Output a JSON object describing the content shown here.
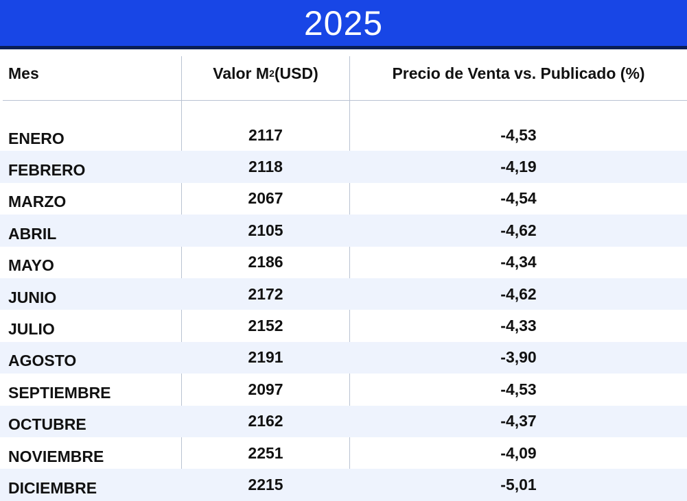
{
  "title": "2025",
  "headers": {
    "mes": "Mes",
    "valor_prefix": "Valor M",
    "valor_sup": "2",
    "valor_suffix": "(USD)",
    "precio": "Precio de Venta vs. Publicado (%)"
  },
  "rows": [
    {
      "mes": "ENERO",
      "valor": "2117",
      "precio": "-4,53"
    },
    {
      "mes": "FEBRERO",
      "valor": "2118",
      "precio": "-4,19"
    },
    {
      "mes": "MARZO",
      "valor": "2067",
      "precio": "-4,54"
    },
    {
      "mes": "ABRIL",
      "valor": "2105",
      "precio": "-4,62"
    },
    {
      "mes": "MAYO",
      "valor": "2186",
      "precio": "-4,34"
    },
    {
      "mes": "JUNIO",
      "valor": "2172",
      "precio": "-4,62"
    },
    {
      "mes": "JULIO",
      "valor": "2152",
      "precio": "-4,33"
    },
    {
      "mes": "AGOSTO",
      "valor": "2191",
      "precio": "-3,90"
    },
    {
      "mes": "SEPTIEMBRE",
      "valor": "2097",
      "precio": "-4,53"
    },
    {
      "mes": "OCTUBRE",
      "valor": "2162",
      "precio": "-4,37"
    },
    {
      "mes": "NOVIEMBRE",
      "valor": "2251",
      "precio": "-4,09"
    },
    {
      "mes": "DICIEMBRE",
      "valor": "2215",
      "precio": "-5,01"
    }
  ],
  "colors": {
    "title_bar": "#1846e6",
    "title_border": "#0a1f55",
    "row_alt": "#eef3fd",
    "grid": "#b8c2d2"
  }
}
